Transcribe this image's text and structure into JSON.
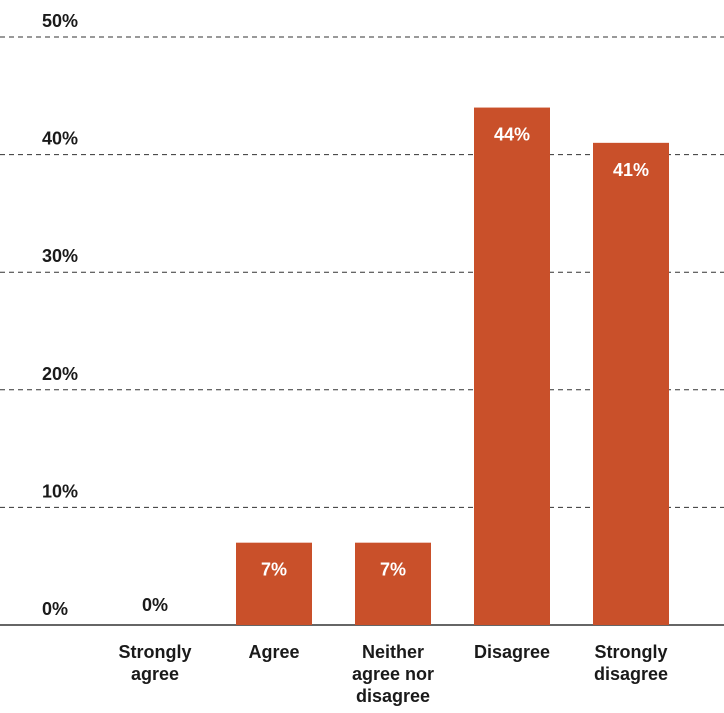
{
  "chart_data": {
    "type": "bar",
    "categories": [
      [
        "Strongly",
        "agree"
      ],
      [
        "Agree"
      ],
      [
        "Neither",
        "agree nor",
        "disagree"
      ],
      [
        "Disagree"
      ],
      [
        "Strongly",
        "disagree"
      ]
    ],
    "values": [
      0,
      7,
      7,
      44,
      41
    ],
    "data_labels": [
      "0%",
      "7%",
      "7%",
      "44%",
      "41%"
    ],
    "yticks": [
      {
        "value": 0,
        "label": "0%"
      },
      {
        "value": 10,
        "label": "10%"
      },
      {
        "value": 20,
        "label": "20%"
      },
      {
        "value": 30,
        "label": "30%"
      },
      {
        "value": 40,
        "label": "40%"
      },
      {
        "value": 50,
        "label": "50%"
      }
    ],
    "ylim": [
      0,
      50
    ],
    "grid": true,
    "legend": "none",
    "title": "",
    "xlabel": "",
    "ylabel": "",
    "colors": {
      "bar": "#c9502a",
      "label_inside": "#ffffff",
      "label_outside": "#1a1a1a"
    }
  }
}
